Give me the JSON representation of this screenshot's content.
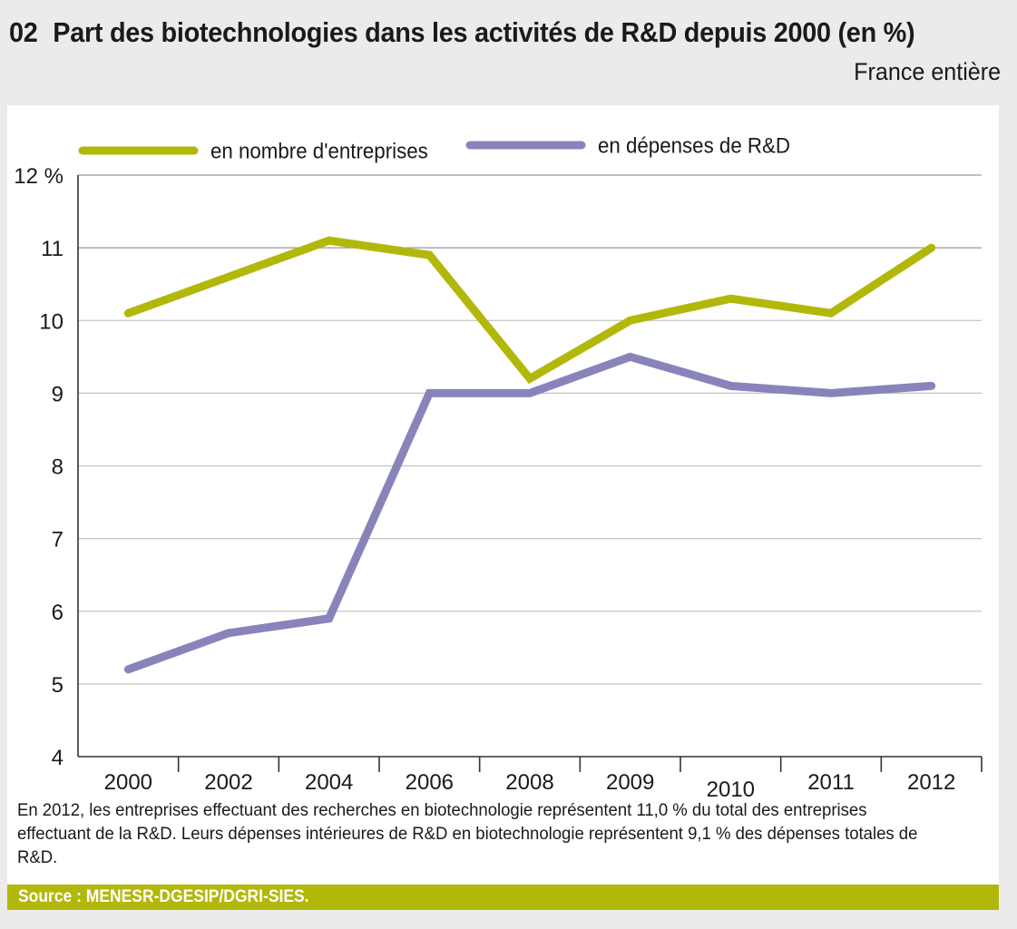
{
  "header": {
    "number": "02",
    "title": "Part des biotechnologies dans les activités de R&D depuis 2000 (en %)",
    "subtitle": "France entière"
  },
  "colors": {
    "series_entreprises": "#b2b80a",
    "series_depenses": "#8884bb",
    "source_bar": "#b2b80a",
    "background": "#ebebeb"
  },
  "chart_data": {
    "type": "line",
    "title": "Part des biotechnologies dans les activités de R&D depuis 2000 (en %)",
    "subtitle": "France entière",
    "xlabel": "",
    "ylabel": "",
    "categories": [
      "2000",
      "2002",
      "2004",
      "2006",
      "2008",
      "2009",
      "2010",
      "2011",
      "2012"
    ],
    "ylim": [
      4,
      12
    ],
    "yticks": [
      4,
      5,
      6,
      7,
      8,
      9,
      10,
      11,
      12
    ],
    "ytick_labels": [
      "4",
      "5",
      "6",
      "7",
      "8",
      "9",
      "10",
      "11",
      "12 %"
    ],
    "grid": true,
    "legend_position": "top",
    "series": [
      {
        "name": "en nombre d'entreprises",
        "color": "#b2b80a",
        "values": [
          10.1,
          10.6,
          11.1,
          10.9,
          9.2,
          10.0,
          10.3,
          10.1,
          11.0
        ]
      },
      {
        "name": "en dépenses de R&D",
        "color": "#8884bb",
        "values": [
          5.2,
          5.7,
          5.9,
          9.0,
          9.0,
          9.5,
          9.1,
          9.0,
          9.1
        ]
      }
    ]
  },
  "note": "En 2012, les entreprises effectuant des recherches en biotechnologie représentent 11,0 % du total des entreprises effectuant de la R&D. Leurs dépenses intérieures de R&D en biotechnologie représentent 9,1 % des dépenses totales de R&D.",
  "source": "Source : MENESR-DGESIP/DGRI-SIES."
}
